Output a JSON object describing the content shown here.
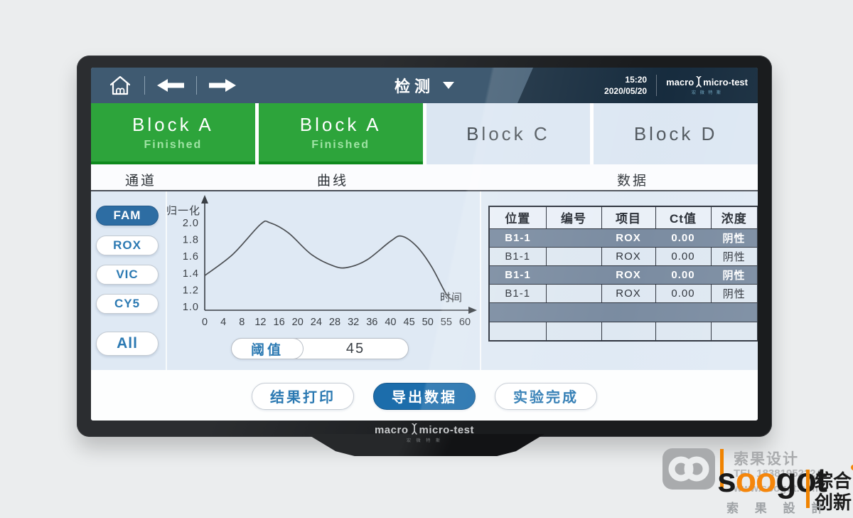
{
  "status_bar": {
    "title": "检测",
    "time": "15:20",
    "date": "2020/05/20",
    "brand_left": "macro",
    "brand_right": "micro-test",
    "brand_sub": "宏 微 特 斯"
  },
  "blocks": [
    {
      "label": "Block A",
      "status": "Finished",
      "state": "finished"
    },
    {
      "label": "Block A",
      "status": "Finished",
      "state": "finished"
    },
    {
      "label": "Block C",
      "status": "",
      "state": "idle"
    },
    {
      "label": "Block D",
      "status": "",
      "state": "idle"
    }
  ],
  "section_labels": {
    "channel": "通道",
    "curve": "曲线",
    "data": "数据"
  },
  "channels": [
    {
      "label": "FAM",
      "selected": true
    },
    {
      "label": "ROX",
      "selected": false
    },
    {
      "label": "VIC",
      "selected": false
    },
    {
      "label": "CY5",
      "selected": false
    },
    {
      "label": "All",
      "selected": false
    }
  ],
  "chart_data": {
    "type": "line",
    "title": "",
    "xlabel": "时间",
    "ylabel": "归一化",
    "x_ticks": [
      0,
      4,
      8,
      12,
      16,
      20,
      24,
      28,
      32,
      36,
      40,
      45,
      50,
      55,
      60
    ],
    "y_ticks": [
      1.0,
      1.2,
      1.4,
      1.6,
      1.8,
      2.0
    ],
    "ylim": [
      1.0,
      2.05
    ],
    "xlim": [
      0,
      60
    ],
    "grid": false,
    "legend": "none",
    "line_color": "#4c4f53",
    "series": [
      {
        "name": "FAM",
        "points": [
          [
            0,
            1.37
          ],
          [
            6,
            1.62
          ],
          [
            12,
            1.98
          ],
          [
            14,
            2.0
          ],
          [
            18,
            1.88
          ],
          [
            23,
            1.62
          ],
          [
            28,
            1.48
          ],
          [
            31,
            1.47
          ],
          [
            35,
            1.56
          ],
          [
            40,
            1.78
          ],
          [
            43,
            1.84
          ],
          [
            47,
            1.72
          ],
          [
            51,
            1.48
          ],
          [
            55,
            1.15
          ],
          [
            57,
            1.08
          ]
        ]
      }
    ]
  },
  "threshold": {
    "label": "阈值",
    "value": "45"
  },
  "table": {
    "headers": [
      "位置",
      "编号",
      "项目",
      "Ct值",
      "浓度"
    ],
    "rows": [
      {
        "style": "dark",
        "cells": [
          "B1-1",
          "",
          "ROX",
          "0.00",
          "阴性"
        ]
      },
      {
        "style": "light",
        "cells": [
          "B1-1",
          "",
          "ROX",
          "0.00",
          "阴性"
        ]
      },
      {
        "style": "dark",
        "cells": [
          "B1-1",
          "",
          "ROX",
          "0.00",
          "阴性"
        ]
      },
      {
        "style": "light",
        "cells": [
          "B1-1",
          "",
          "ROX",
          "0.00",
          "阴性"
        ]
      },
      {
        "style": "dark",
        "cells": [
          "",
          "",
          "",
          "",
          ""
        ]
      },
      {
        "style": "light",
        "cells": [
          "",
          "",
          "",
          "",
          ""
        ]
      }
    ]
  },
  "footer_buttons": [
    {
      "label": "结果打印",
      "primary": false
    },
    {
      "label": "导出数据",
      "primary": true
    },
    {
      "label": "实验完成",
      "primary": false
    }
  ],
  "device": {
    "brand_left": "macro",
    "brand_right": "micro-test",
    "brand_sub": "宏 微 特 斯"
  },
  "watermark": {
    "company": "索果设计",
    "tel": "TEL 18381952224",
    "web": "www.soogot.com",
    "logo_s": "s",
    "logo_oo": "oo",
    "logo_got": "got",
    "tagline_1": "综合",
    "tagline_2": "创新",
    "company_spaced": "索 果 設 計"
  },
  "colors": {
    "accent_blue": "#2b79b2",
    "primary_button": "#1c6dab",
    "selected_channel": "#2d6da3",
    "finished_green": "#2da43b",
    "finished_green_border": "#0f8a1e",
    "navbar": "#3f5a71",
    "navbar_dark": "#0d2336",
    "panel": "#dfe9f4",
    "table_dark_row": "#75879d",
    "watermark_orange": "#f08300"
  }
}
